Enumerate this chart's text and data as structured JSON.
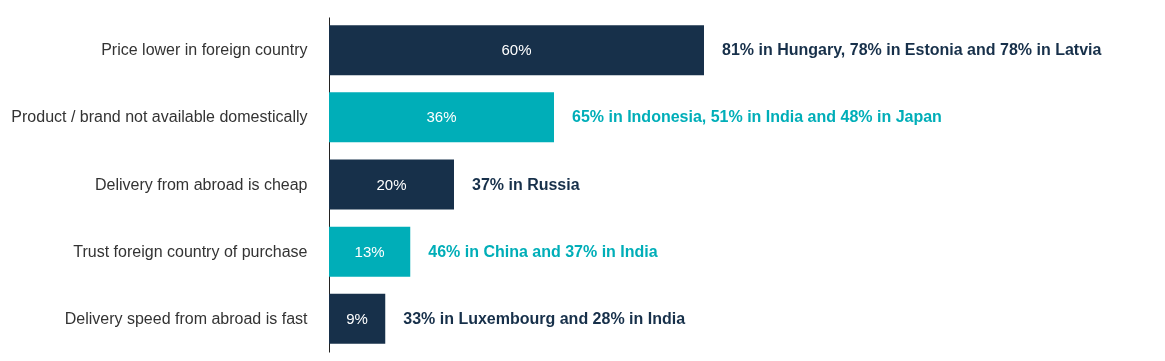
{
  "chart_data": {
    "type": "bar",
    "orientation": "horizontal",
    "categories": [
      "Price lower in foreign country",
      "Product / brand not available domestically",
      "Delivery from abroad is cheap",
      "Trust foreign country of purchase",
      "Delivery speed from abroad is fast"
    ],
    "values": [
      60,
      36,
      20,
      13,
      9
    ],
    "colors": [
      "#17304a",
      "#00aeb8",
      "#17304a",
      "#00aeb8",
      "#17304a"
    ],
    "value_labels": [
      "60%",
      "36%",
      "20%",
      "13%",
      "9%"
    ],
    "annotations": [
      {
        "text": "81% in Hungary, 78% in Estonia and 78% in Latvia",
        "x": 60,
        "y": "Price lower in foreign country"
      },
      {
        "text": "65% in Indonesia, 51% in India and 48% in Japan",
        "x": 36,
        "y": "Product / brand not available domestically"
      },
      {
        "text": "37% in Russia",
        "x": 20,
        "y": "Delivery from abroad is cheap"
      },
      {
        "text": "46% in China and 37% in India",
        "x": 13,
        "y": "Trust foreign country of purchase"
      },
      {
        "text": "33% in Luxembourg and 28% in India",
        "x": 9,
        "y": "Delivery speed from abroad is fast"
      }
    ],
    "grid": false
  }
}
